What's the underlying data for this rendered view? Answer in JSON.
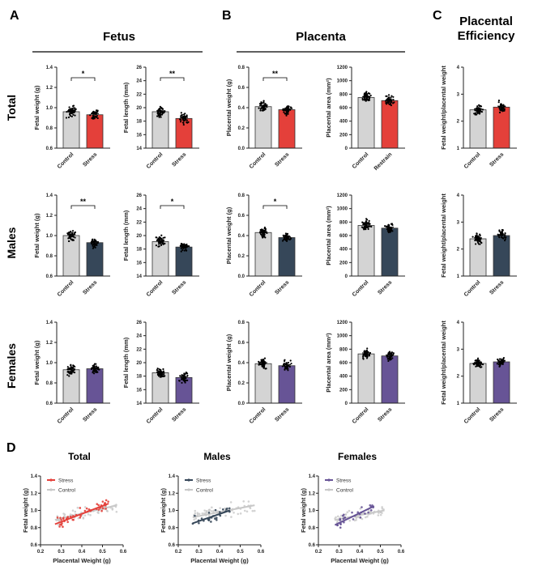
{
  "panels": {
    "A": "A",
    "B": "B",
    "C": "C",
    "D": "D"
  },
  "section_titles": {
    "fetus": "Fetus",
    "placenta": "Placenta",
    "efficiency_line1": "Placental",
    "efficiency_line2": "Efficiency"
  },
  "row_labels": [
    "Total",
    "Males",
    "Females"
  ],
  "colors": {
    "control": "#d4d4d4",
    "stress_total": "#e4403a",
    "stress_males": "#364759",
    "stress_females": "#675496",
    "control_scatter": "#c8c8c8"
  },
  "chart_data": [
    {
      "type": "bar",
      "group": "Total",
      "ylabel": "Fetal weight (g)",
      "ylim": [
        0.6,
        1.4
      ],
      "ytick_labels": [
        "0.6",
        "0.8",
        "1.0",
        "1.2",
        "1.4"
      ],
      "categories": [
        "Control",
        "Stress"
      ],
      "values": [
        0.96,
        0.93
      ],
      "significance": "*"
    },
    {
      "type": "bar",
      "group": "Total",
      "ylabel": "Fetal length (mm)",
      "ylim": [
        14,
        26
      ],
      "ytick_labels": [
        "14",
        "16",
        "18",
        "20",
        "22",
        "24",
        "26"
      ],
      "categories": [
        "Control",
        "Stress"
      ],
      "values": [
        19.4,
        18.4
      ],
      "significance": "**"
    },
    {
      "type": "bar",
      "group": "Total",
      "ylabel": "Placental weight (g)",
      "ylim": [
        0,
        0.8
      ],
      "ytick_labels": [
        "0.0",
        "0.2",
        "0.4",
        "0.6",
        "0.8"
      ],
      "categories": [
        "Control",
        "Stress"
      ],
      "values": [
        0.41,
        0.38
      ],
      "significance": "**"
    },
    {
      "type": "bar",
      "group": "Total",
      "ylabel": "Placental area (mm²)",
      "ylim": [
        0,
        1200
      ],
      "ytick_labels": [
        "0",
        "200",
        "400",
        "600",
        "800",
        "1000",
        "1200"
      ],
      "categories": [
        "Control",
        "Restrain"
      ],
      "values": [
        750,
        705
      ],
      "significance": ""
    },
    {
      "type": "bar",
      "group": "Total",
      "ylabel": "Fetal weight/placental weight",
      "ylim": [
        1,
        4
      ],
      "ytick_labels": [
        "1",
        "2",
        "3",
        "4"
      ],
      "categories": [
        "Control",
        "Stress"
      ],
      "values": [
        2.42,
        2.52
      ],
      "significance": ""
    },
    {
      "type": "bar",
      "group": "Males",
      "ylabel": "Fetal weight (g)",
      "ylim": [
        0.6,
        1.4
      ],
      "ytick_labels": [
        "0.6",
        "0.8",
        "1.0",
        "1.2",
        "1.4"
      ],
      "categories": [
        "Control",
        "Stress"
      ],
      "values": [
        1.0,
        0.93
      ],
      "significance": "**"
    },
    {
      "type": "bar",
      "group": "Males",
      "ylabel": "Fetal length (mm)",
      "ylim": [
        14,
        26
      ],
      "ytick_labels": [
        "14",
        "16",
        "18",
        "20",
        "22",
        "24",
        "26"
      ],
      "categories": [
        "Control",
        "Stress"
      ],
      "values": [
        19.1,
        18.3
      ],
      "significance": "*"
    },
    {
      "type": "bar",
      "group": "Males",
      "ylabel": "Placental weight (g)",
      "ylim": [
        0,
        0.8
      ],
      "ytick_labels": [
        "0.0",
        "0.2",
        "0.4",
        "0.6",
        "0.8"
      ],
      "categories": [
        "Control",
        "Stress"
      ],
      "values": [
        0.43,
        0.38
      ],
      "significance": "*"
    },
    {
      "type": "bar",
      "group": "Males",
      "ylabel": "Placental area (mm²)",
      "ylim": [
        0,
        1200
      ],
      "ytick_labels": [
        "0",
        "200",
        "400",
        "600",
        "800",
        "1000",
        "1200"
      ],
      "categories": [
        "Control",
        "Stress"
      ],
      "values": [
        750,
        710
      ],
      "significance": ""
    },
    {
      "type": "bar",
      "group": "Males",
      "ylabel": "Fetal weight/placental weight",
      "ylim": [
        1,
        4
      ],
      "ytick_labels": [
        "1",
        "2",
        "3",
        "4"
      ],
      "categories": [
        "Control",
        "Stress"
      ],
      "values": [
        2.38,
        2.5
      ],
      "significance": ""
    },
    {
      "type": "bar",
      "group": "Females",
      "ylabel": "Fetal weight (g)",
      "ylim": [
        0.6,
        1.4
      ],
      "ytick_labels": [
        "0.6",
        "0.8",
        "1.0",
        "1.2",
        "1.4"
      ],
      "categories": [
        "Control",
        "Stress"
      ],
      "values": [
        0.93,
        0.94
      ],
      "significance": ""
    },
    {
      "type": "bar",
      "group": "Females",
      "ylabel": "Fetal length (mm)",
      "ylim": [
        14,
        26
      ],
      "ytick_labels": [
        "14",
        "16",
        "18",
        "20",
        "22",
        "24",
        "26"
      ],
      "categories": [
        "Control",
        "Stress"
      ],
      "values": [
        18.5,
        17.8
      ],
      "significance": ""
    },
    {
      "type": "bar",
      "group": "Females",
      "ylabel": "Placental weight (g)",
      "ylim": [
        0,
        0.8
      ],
      "ytick_labels": [
        "0.0",
        "0.2",
        "0.4",
        "0.6",
        "0.8"
      ],
      "categories": [
        "Control",
        "Stress"
      ],
      "values": [
        0.39,
        0.37
      ],
      "significance": ""
    },
    {
      "type": "bar",
      "group": "Females",
      "ylabel": "Placental area (mm²)",
      "ylim": [
        0,
        1200
      ],
      "ytick_labels": [
        "0",
        "200",
        "400",
        "600",
        "800",
        "1000",
        "1200"
      ],
      "categories": [
        "Control",
        "Stress"
      ],
      "values": [
        730,
        700
      ],
      "significance": ""
    },
    {
      "type": "bar",
      "group": "Females",
      "ylabel": "Fetal weight/placental weight",
      "ylim": [
        1,
        4
      ],
      "ytick_labels": [
        "1",
        "2",
        "3",
        "4"
      ],
      "categories": [
        "Control",
        "Stress"
      ],
      "values": [
        2.47,
        2.53
      ],
      "significance": ""
    },
    {
      "type": "scatter",
      "title": "Total",
      "xlabel": "Placental Weight (g)",
      "ylabel": "Fetal weight (g)",
      "xlim": [
        0.2,
        0.6
      ],
      "ylim": [
        0.6,
        1.4
      ],
      "xtick_labels": [
        "0.2",
        "0.3",
        "0.4",
        "0.5",
        "0.6"
      ],
      "ytick_labels": [
        "0.6",
        "0.8",
        "1.0",
        "1.2",
        "1.4"
      ],
      "legend": [
        "Stress",
        "Control"
      ],
      "legend_position": "top-left",
      "series": [
        {
          "name": "Stress",
          "fit": [
            [
              0.27,
              0.84
            ],
            [
              0.53,
              1.08
            ]
          ]
        },
        {
          "name": "Control",
          "fit": [
            [
              0.27,
              0.89
            ],
            [
              0.57,
              1.06
            ]
          ]
        }
      ]
    },
    {
      "type": "scatter",
      "title": "Males",
      "xlabel": "Placental Weight (g)",
      "ylabel": "Fetal weight (g)",
      "xlim": [
        0.2,
        0.6
      ],
      "ylim": [
        0.6,
        1.4
      ],
      "xtick_labels": [
        "0.2",
        "0.3",
        "0.4",
        "0.5",
        "0.6"
      ],
      "ytick_labels": [
        "0.6",
        "0.8",
        "1.0",
        "1.2",
        "1.4"
      ],
      "legend": [
        "Stress",
        "Control"
      ],
      "legend_position": "top-left",
      "series": [
        {
          "name": "Stress",
          "fit": [
            [
              0.27,
              0.85
            ],
            [
              0.45,
              1.0
            ]
          ]
        },
        {
          "name": "Control",
          "fit": [
            [
              0.27,
              0.92
            ],
            [
              0.57,
              1.06
            ]
          ]
        }
      ]
    },
    {
      "type": "scatter",
      "title": "Females",
      "xlabel": "Placental Weight (g)",
      "ylabel": "Fetal weight (g)",
      "xlim": [
        0.2,
        0.6
      ],
      "ylim": [
        0.6,
        1.4
      ],
      "xtick_labels": [
        "0.2",
        "0.3",
        "0.4",
        "0.5",
        "0.6"
      ],
      "ytick_labels": [
        "0.6",
        "0.8",
        "1.0",
        "1.2",
        "1.4"
      ],
      "legend": [
        "Stress",
        "Control"
      ],
      "legend_position": "top-left",
      "series": [
        {
          "name": "Stress",
          "fit": [
            [
              0.28,
              0.83
            ],
            [
              0.47,
              1.05
            ]
          ]
        },
        {
          "name": "Control",
          "fit": [
            [
              0.28,
              0.89
            ],
            [
              0.52,
              1.0
            ]
          ]
        }
      ]
    }
  ]
}
